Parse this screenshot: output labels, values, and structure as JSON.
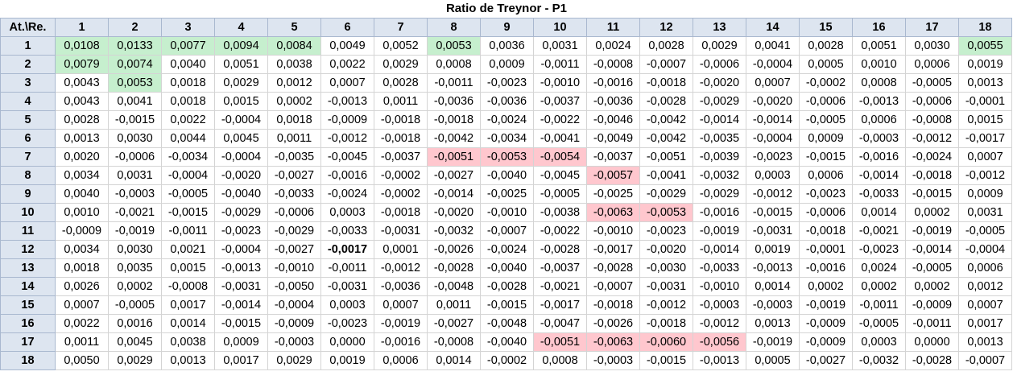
{
  "title": "Ratio de Treynor - P1",
  "corner": "At.\\Re.",
  "columns": [
    "1",
    "2",
    "3",
    "4",
    "5",
    "6",
    "7",
    "8",
    "9",
    "10",
    "11",
    "12",
    "13",
    "14",
    "15",
    "16",
    "17",
    "18"
  ],
  "colors": {
    "header_bg": "#dde5f0",
    "positive_highlight": "#c6efce",
    "negative_highlight": "#ffc7ce"
  },
  "rows": [
    {
      "label": "1",
      "values": [
        "0,0108",
        "0,0133",
        "0,0077",
        "0,0094",
        "0,0084",
        "0,0049",
        "0,0052",
        "0,0053",
        "0,0036",
        "0,0031",
        "0,0024",
        "0,0028",
        "0,0029",
        "0,0041",
        "0,0028",
        "0,0051",
        "0,0030",
        "0,0055"
      ],
      "green": [
        0,
        1,
        2,
        3,
        4,
        7,
        17
      ],
      "red": [],
      "bold": []
    },
    {
      "label": "2",
      "values": [
        "0,0079",
        "0,0074",
        "0,0040",
        "0,0051",
        "0,0038",
        "0,0022",
        "0,0029",
        "0,0008",
        "0,0009",
        "-0,0011",
        "-0,0008",
        "-0,0007",
        "-0,0006",
        "-0,0004",
        "0,0005",
        "0,0010",
        "0,0006",
        "0,0019"
      ],
      "green": [
        0,
        1
      ],
      "red": [],
      "bold": []
    },
    {
      "label": "3",
      "values": [
        "0,0043",
        "0,0053",
        "0,0018",
        "0,0029",
        "0,0012",
        "0,0007",
        "0,0028",
        "-0,0011",
        "-0,0023",
        "-0,0010",
        "-0,0016",
        "-0,0018",
        "-0,0020",
        "0,0007",
        "-0,0002",
        "0,0008",
        "-0,0005",
        "0,0013"
      ],
      "green": [
        1
      ],
      "red": [],
      "bold": []
    },
    {
      "label": "4",
      "values": [
        "0,0043",
        "0,0041",
        "0,0018",
        "0,0015",
        "0,0002",
        "-0,0013",
        "0,0011",
        "-0,0036",
        "-0,0036",
        "-0,0037",
        "-0,0036",
        "-0,0028",
        "-0,0029",
        "-0,0020",
        "-0,0006",
        "-0,0013",
        "-0,0006",
        "-0,0001"
      ],
      "green": [],
      "red": [],
      "bold": []
    },
    {
      "label": "5",
      "values": [
        "0,0028",
        "-0,0015",
        "0,0022",
        "-0,0004",
        "0,0018",
        "-0,0009",
        "-0,0018",
        "-0,0018",
        "-0,0024",
        "-0,0022",
        "-0,0046",
        "-0,0042",
        "-0,0014",
        "-0,0014",
        "-0,0005",
        "0,0006",
        "-0,0008",
        "0,0015"
      ],
      "green": [],
      "red": [],
      "bold": []
    },
    {
      "label": "6",
      "values": [
        "0,0013",
        "0,0030",
        "0,0044",
        "0,0045",
        "0,0011",
        "-0,0012",
        "-0,0018",
        "-0,0042",
        "-0,0034",
        "-0,0041",
        "-0,0049",
        "-0,0042",
        "-0,0035",
        "-0,0004",
        "0,0009",
        "-0,0003",
        "-0,0012",
        "-0,0017"
      ],
      "green": [],
      "red": [],
      "bold": []
    },
    {
      "label": "7",
      "values": [
        "0,0020",
        "-0,0006",
        "-0,0034",
        "-0,0004",
        "-0,0035",
        "-0,0045",
        "-0,0037",
        "-0,0051",
        "-0,0053",
        "-0,0054",
        "-0,0037",
        "-0,0051",
        "-0,0039",
        "-0,0023",
        "-0,0015",
        "-0,0016",
        "-0,0024",
        "0,0007"
      ],
      "green": [],
      "red": [
        7,
        8,
        9
      ],
      "bold": []
    },
    {
      "label": "8",
      "values": [
        "0,0034",
        "0,0031",
        "-0,0004",
        "-0,0020",
        "-0,0027",
        "-0,0016",
        "-0,0002",
        "-0,0027",
        "-0,0040",
        "-0,0045",
        "-0,0057",
        "-0,0041",
        "-0,0032",
        "0,0003",
        "0,0006",
        "-0,0014",
        "-0,0018",
        "-0,0012"
      ],
      "green": [],
      "red": [
        10
      ],
      "bold": []
    },
    {
      "label": "9",
      "values": [
        "0,0040",
        "-0,0003",
        "-0,0005",
        "-0,0040",
        "-0,0033",
        "-0,0024",
        "-0,0002",
        "-0,0014",
        "-0,0025",
        "-0,0005",
        "-0,0025",
        "-0,0029",
        "-0,0029",
        "-0,0012",
        "-0,0023",
        "-0,0033",
        "-0,0015",
        "0,0009"
      ],
      "green": [],
      "red": [],
      "bold": []
    },
    {
      "label": "10",
      "values": [
        "0,0010",
        "-0,0021",
        "-0,0015",
        "-0,0029",
        "-0,0006",
        "0,0003",
        "-0,0018",
        "-0,0020",
        "-0,0010",
        "-0,0038",
        "-0,0063",
        "-0,0053",
        "-0,0016",
        "-0,0015",
        "-0,0006",
        "0,0014",
        "0,0002",
        "0,0031"
      ],
      "green": [],
      "red": [
        10,
        11
      ],
      "bold": []
    },
    {
      "label": "11",
      "values": [
        "-0,0009",
        "-0,0019",
        "-0,0011",
        "-0,0023",
        "-0,0029",
        "-0,0033",
        "-0,0031",
        "-0,0032",
        "-0,0007",
        "-0,0022",
        "-0,0010",
        "-0,0023",
        "-0,0019",
        "-0,0031",
        "-0,0018",
        "-0,0021",
        "-0,0019",
        "-0,0005"
      ],
      "green": [],
      "red": [],
      "bold": []
    },
    {
      "label": "12",
      "values": [
        "0,0034",
        "0,0030",
        "0,0021",
        "-0,0004",
        "-0,0027",
        "-0,0017",
        "0,0001",
        "-0,0026",
        "-0,0024",
        "-0,0028",
        "-0,0017",
        "-0,0020",
        "-0,0014",
        "0,0019",
        "-0,0001",
        "-0,0023",
        "-0,0014",
        "-0,0004"
      ],
      "green": [],
      "red": [],
      "bold": [
        5
      ]
    },
    {
      "label": "13",
      "values": [
        "0,0018",
        "0,0035",
        "0,0015",
        "-0,0013",
        "-0,0010",
        "-0,0011",
        "-0,0012",
        "-0,0028",
        "-0,0040",
        "-0,0037",
        "-0,0028",
        "-0,0030",
        "-0,0033",
        "-0,0013",
        "-0,0016",
        "0,0024",
        "-0,0005",
        "0,0006"
      ],
      "green": [],
      "red": [],
      "bold": []
    },
    {
      "label": "14",
      "values": [
        "0,0026",
        "0,0002",
        "-0,0008",
        "-0,0031",
        "-0,0050",
        "-0,0031",
        "-0,0036",
        "-0,0048",
        "-0,0028",
        "-0,0021",
        "-0,0007",
        "-0,0031",
        "-0,0010",
        "0,0014",
        "0,0002",
        "0,0002",
        "0,0002",
        "0,0012"
      ],
      "green": [],
      "red": [],
      "bold": []
    },
    {
      "label": "15",
      "values": [
        "0,0007",
        "-0,0005",
        "0,0017",
        "-0,0014",
        "-0,0004",
        "0,0003",
        "0,0007",
        "0,0011",
        "-0,0015",
        "-0,0017",
        "-0,0018",
        "-0,0012",
        "-0,0003",
        "-0,0003",
        "-0,0019",
        "-0,0011",
        "-0,0009",
        "0,0007"
      ],
      "green": [],
      "red": [],
      "bold": []
    },
    {
      "label": "16",
      "values": [
        "0,0022",
        "0,0016",
        "0,0014",
        "-0,0015",
        "-0,0009",
        "-0,0023",
        "-0,0019",
        "-0,0027",
        "-0,0048",
        "-0,0047",
        "-0,0026",
        "-0,0018",
        "-0,0012",
        "0,0013",
        "-0,0009",
        "-0,0005",
        "-0,0011",
        "0,0017"
      ],
      "green": [],
      "red": [],
      "bold": []
    },
    {
      "label": "17",
      "values": [
        "0,0011",
        "0,0045",
        "0,0038",
        "0,0009",
        "-0,0003",
        "0,0000",
        "-0,0016",
        "-0,0008",
        "-0,0040",
        "-0,0051",
        "-0,0063",
        "-0,0060",
        "-0,0056",
        "-0,0019",
        "-0,0009",
        "0,0003",
        "0,0000",
        "0,0013"
      ],
      "green": [],
      "red": [
        9,
        10,
        11,
        12
      ],
      "bold": []
    },
    {
      "label": "18",
      "values": [
        "0,0050",
        "0,0029",
        "0,0013",
        "0,0017",
        "0,0029",
        "0,0019",
        "0,0006",
        "0,0014",
        "-0,0002",
        "0,0008",
        "-0,0003",
        "-0,0015",
        "-0,0013",
        "0,0005",
        "-0,0027",
        "-0,0032",
        "-0,0028",
        "-0,0007"
      ],
      "green": [],
      "red": [],
      "bold": []
    }
  ]
}
